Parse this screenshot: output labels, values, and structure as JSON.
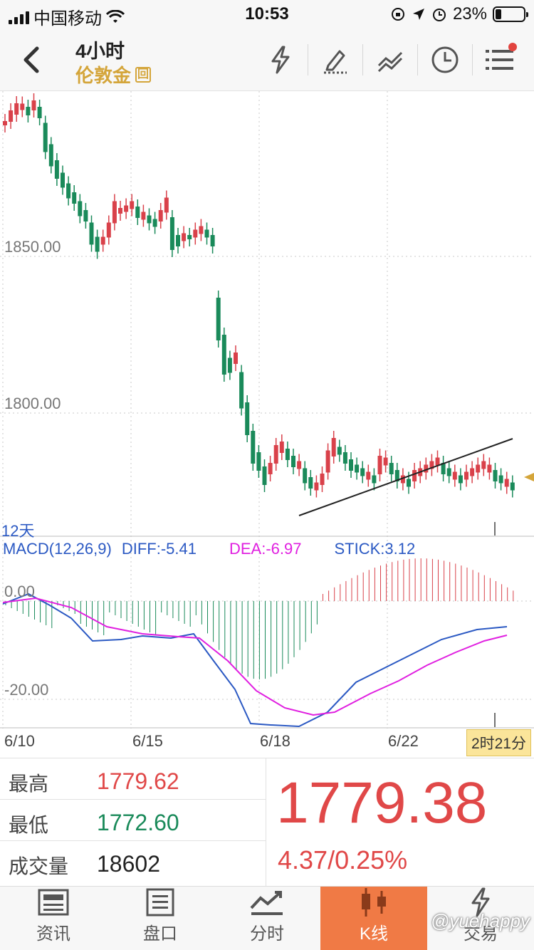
{
  "status_bar": {
    "carrier": "中国移动",
    "time": "10:53",
    "battery": "23%"
  },
  "nav": {
    "title": "4小时",
    "subtitle": "伦敦金",
    "badge": "回"
  },
  "chart": {
    "price_labels": [
      "1850.00",
      "1800.00"
    ],
    "period": "12天",
    "macd_legend": {
      "name": "MACD(12,26,9)",
      "diff": "DIFF:-5.41",
      "dea": "DEA:-6.97",
      "stick": "STICK:3.12"
    },
    "macd_levels": [
      "0.00",
      "-20.00"
    ],
    "dates": [
      "6/10",
      "6/15",
      "6/18",
      "6/22"
    ],
    "countdown": "2时21分",
    "colors": {
      "up": "#d9414a",
      "down": "#1a8a5a",
      "diff_line": "#2b59c3",
      "dea_line": "#e020e0"
    }
  },
  "quote": {
    "high_label": "最高",
    "high_value": "1779.62",
    "low_label": "最低",
    "low_value": "1772.60",
    "volume_label": "成交量",
    "volume_value": "18602",
    "price": "1779.38",
    "change": "4.37/0.25%"
  },
  "tabs": [
    {
      "label": "资讯",
      "icon": "news-icon"
    },
    {
      "label": "盘口",
      "icon": "orderbook-icon"
    },
    {
      "label": "分时",
      "icon": "timeshare-icon"
    },
    {
      "label": "K线",
      "icon": "kline-icon"
    },
    {
      "label": "交易",
      "icon": "trade-icon"
    }
  ],
  "watermark": "@yuehappy"
}
